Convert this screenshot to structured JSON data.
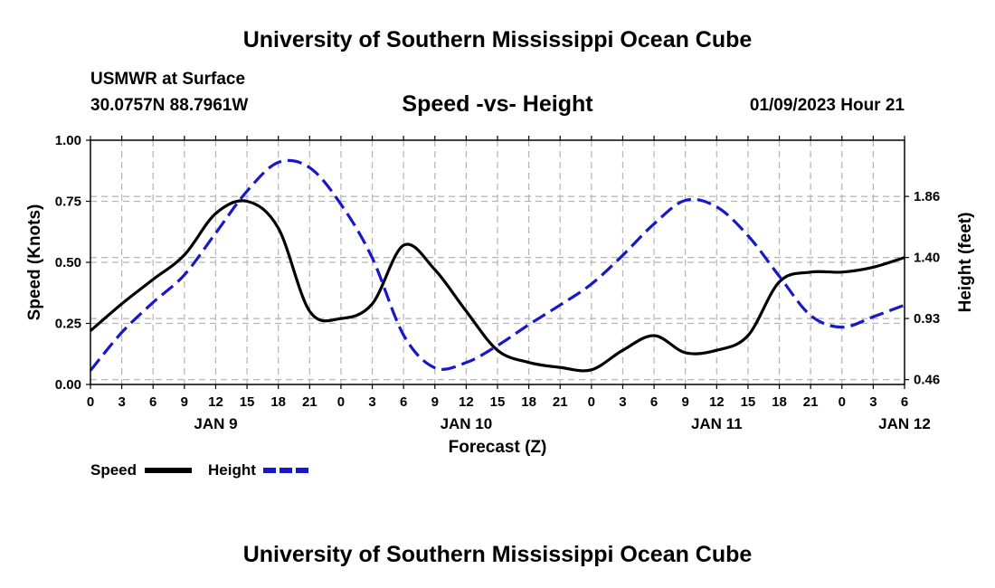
{
  "header": {
    "title": "University of Southern Mississippi Ocean Cube",
    "station": "USMWR at Surface",
    "coords": "30.0757N  88.7961W",
    "subtitle": "Speed -vs- Height",
    "timestamp": "01/09/2023 Hour 21"
  },
  "footer": {
    "title": "University of Southern Mississippi Ocean Cube"
  },
  "legend": {
    "speed_label": "Speed",
    "height_label": "Height"
  },
  "colors": {
    "speed": "#000000",
    "height": "#1818c8",
    "grid": "#b4b4b4"
  },
  "chart_data": {
    "type": "line",
    "title": "Speed -vs- Height",
    "xlabel": "Forecast (Z)",
    "ylabel": "Speed (Knots)",
    "y2label": "Height (feet)",
    "x_tick_labels": [
      "0",
      "3",
      "6",
      "9",
      "12",
      "15",
      "18",
      "21",
      "0",
      "3",
      "6",
      "9",
      "12",
      "15",
      "18",
      "21",
      "0",
      "3",
      "6",
      "9",
      "12",
      "15",
      "18",
      "21",
      "0",
      "3",
      "6"
    ],
    "date_labels": [
      {
        "label": "JAN 9",
        "hour": 12
      },
      {
        "label": "JAN 10",
        "hour": 36
      },
      {
        "label": "JAN 11",
        "hour": 60
      },
      {
        "label": "JAN 12",
        "hour": 78
      }
    ],
    "xlim": [
      0,
      78
    ],
    "ylim": [
      0,
      1
    ],
    "y_ticks": [
      "0.00",
      "0.25",
      "0.50",
      "0.75",
      "1.00"
    ],
    "y2_ticks": [
      {
        "label": "0.46",
        "speed_equiv": 0.02
      },
      {
        "label": "0.93",
        "speed_equiv": 0.27
      },
      {
        "label": "1.40",
        "speed_equiv": 0.52
      },
      {
        "label": "1.86",
        "speed_equiv": 0.77
      }
    ],
    "series": [
      {
        "name": "Speed",
        "axis": "left",
        "x": [
          0,
          3,
          6,
          9,
          12,
          15,
          18,
          21,
          24,
          27,
          30,
          33,
          36,
          39,
          42,
          45,
          48,
          51,
          54,
          57,
          60,
          63,
          66,
          69,
          72,
          75,
          78
        ],
        "values": [
          0.22,
          0.33,
          0.43,
          0.53,
          0.7,
          0.75,
          0.64,
          0.3,
          0.27,
          0.33,
          0.57,
          0.47,
          0.3,
          0.14,
          0.09,
          0.07,
          0.06,
          0.14,
          0.2,
          0.13,
          0.14,
          0.2,
          0.42,
          0.46,
          0.46,
          0.48,
          0.52
        ]
      },
      {
        "name": "Height",
        "axis": "right",
        "units": "feet",
        "x": [
          0,
          3,
          6,
          9,
          12,
          15,
          18,
          21,
          24,
          27,
          30,
          33,
          36,
          39,
          42,
          45,
          48,
          51,
          54,
          57,
          60,
          63,
          66,
          69,
          72,
          75,
          78
        ],
        "values": [
          0.53,
          0.82,
          1.05,
          1.26,
          1.58,
          1.9,
          2.12,
          2.08,
          1.8,
          1.39,
          0.8,
          0.55,
          0.59,
          0.72,
          0.88,
          1.03,
          1.19,
          1.41,
          1.65,
          1.83,
          1.78,
          1.56,
          1.25,
          0.95,
          0.86,
          0.94,
          1.03
        ]
      }
    ]
  }
}
